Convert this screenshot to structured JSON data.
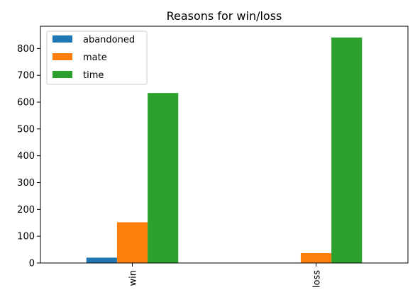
{
  "chart_data": {
    "type": "bar",
    "title": "Reasons for win/loss",
    "xlabel": "",
    "ylabel": "",
    "categories": [
      "win",
      "loss"
    ],
    "series": [
      {
        "name": "abandoned",
        "color": "#1f77b4",
        "values": [
          20,
          0
        ]
      },
      {
        "name": "mate",
        "color": "#ff7f0e",
        "values": [
          152,
          37
        ]
      },
      {
        "name": "time",
        "color": "#2ca02c",
        "values": [
          634,
          841
        ]
      }
    ],
    "ylim": [
      0,
      883
    ],
    "yticks": [
      0,
      100,
      200,
      300,
      400,
      500,
      600,
      700,
      800
    ],
    "grid": false,
    "legend_position": "top-left"
  }
}
